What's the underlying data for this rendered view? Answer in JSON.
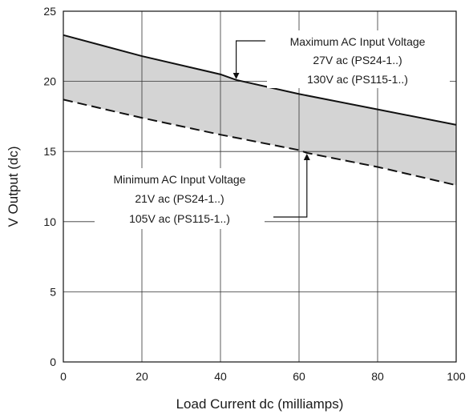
{
  "chart_data": {
    "type": "line",
    "title": "",
    "xlabel": "Load Current dc (milliamps)",
    "ylabel": "V Output (dc)",
    "xlim": [
      0,
      100
    ],
    "ylim": [
      0,
      25
    ],
    "x_ticks": [
      0,
      20,
      40,
      60,
      80,
      100
    ],
    "y_ticks": [
      0,
      5,
      10,
      15,
      20,
      25
    ],
    "x_tick_labels": [
      "0",
      "20",
      "40",
      "60",
      "80",
      "100"
    ],
    "y_tick_labels": [
      "0",
      "5",
      "10",
      "15",
      "20",
      "25"
    ],
    "grid": true,
    "shaded_band": {
      "between": [
        "maximum",
        "minimum"
      ],
      "color": "#d4d4d4"
    },
    "series": [
      {
        "id": "maximum",
        "style": "solid",
        "color": "#111111",
        "x": [
          0,
          20,
          40,
          44,
          60,
          80,
          100
        ],
        "y": [
          23.3,
          21.8,
          20.5,
          20.1,
          19.1,
          18.0,
          16.9
        ]
      },
      {
        "id": "minimum",
        "style": "dashed",
        "color": "#111111",
        "x": [
          0,
          20,
          40,
          60,
          62,
          80,
          100
        ],
        "y": [
          18.7,
          17.4,
          16.2,
          15.1,
          14.9,
          13.9,
          12.6
        ]
      }
    ],
    "annotations": [
      {
        "id": "max-annotation",
        "lines": [
          "Maximum AC Input Voltage",
          "27V ac (PS24-1..)",
          "130V ac (PS115-1..)"
        ],
        "points_to": [
          44,
          20.1
        ]
      },
      {
        "id": "min-annotation",
        "lines": [
          "Minimum AC Input Voltage",
          "21V ac (PS24-1..)",
          "105V ac (PS115-1..)"
        ],
        "points_to": [
          62,
          14.9
        ]
      }
    ]
  }
}
